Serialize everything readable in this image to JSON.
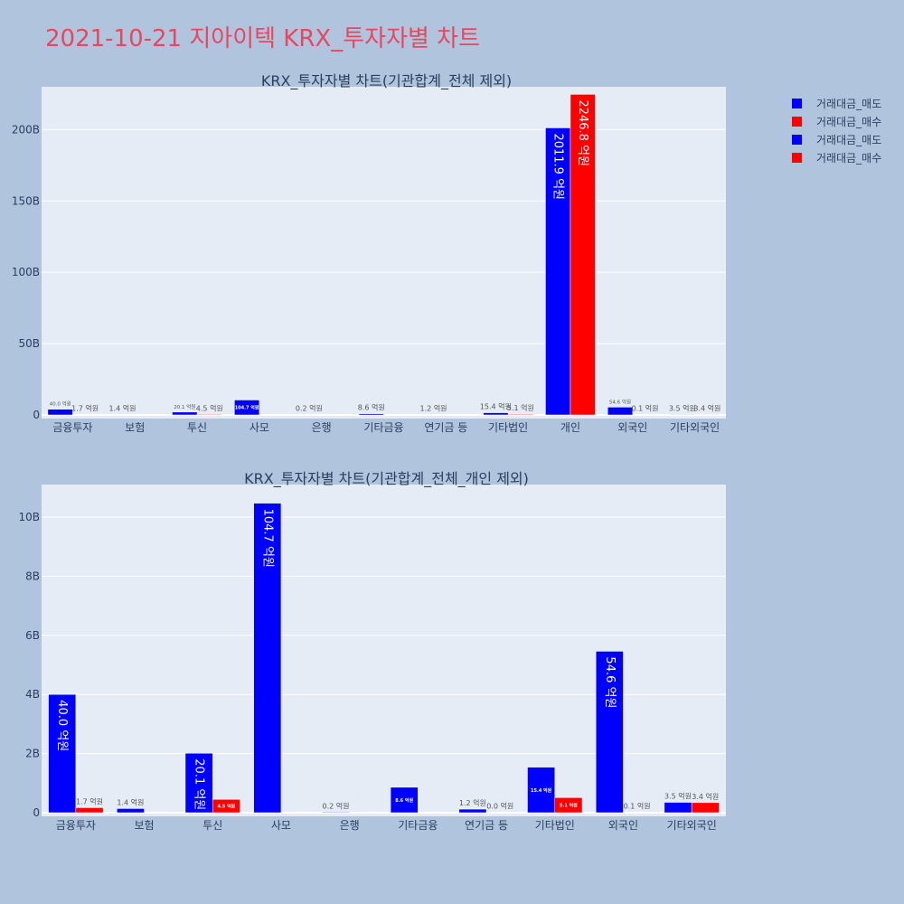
{
  "title": "2021-10-21 지아이텍 KRX_투자자별 차트",
  "colors": {
    "sell": "#0000ff",
    "buy": "#ff0000",
    "plot_bg": "#e5ecf6",
    "page_bg": "#b0c4de",
    "title": "#e8475f"
  },
  "legend": {
    "items": [
      {
        "label": "거래대금_매도",
        "color": "#0000ff"
      },
      {
        "label": "거래대금_매수",
        "color": "#ff0000"
      },
      {
        "label": "거래대금_매도",
        "color": "#0000ff"
      },
      {
        "label": "거래대금_매수",
        "color": "#ff0000"
      }
    ]
  },
  "chart_data": [
    {
      "type": "bar",
      "title": "KRX_투자자별 차트(기관합계_전체 제외)",
      "categories": [
        "금융투자",
        "보험",
        "투신",
        "사모",
        "은행",
        "기타금융",
        "연기금 등",
        "기타법인",
        "개인",
        "외국인",
        "기타외국인"
      ],
      "ylim": [
        0,
        230
      ],
      "yticks": [
        0,
        50,
        100,
        150,
        200
      ],
      "ytick_labels": [
        "0",
        "50B",
        "100B",
        "150B",
        "200B"
      ],
      "series": [
        {
          "name": "거래대금_매도",
          "color": "#0000ff",
          "values": [
            4.0,
            0.14,
            2.01,
            10.47,
            0.02,
            0.86,
            0.12,
            1.54,
            201.19,
            5.46,
            0.35
          ],
          "labels": [
            "40.0 억원",
            "1.4 억원",
            "20.1 억원",
            "104.7 억원",
            "0.2 억원",
            "8.6 억원",
            "1.2 억원",
            "15.4 억원",
            "2011.9 억원",
            "54.6 억원",
            "3.5 억원"
          ]
        },
        {
          "name": "거래대금_매수",
          "color": "#ff0000",
          "values": [
            0.17,
            null,
            0.45,
            null,
            null,
            null,
            null,
            0.51,
            224.68,
            0.01,
            0.34
          ],
          "labels": [
            "1.7 억원",
            null,
            "4.5 억원",
            null,
            null,
            null,
            null,
            "5.1 억원",
            "2246.8 억원",
            "0.1 억원",
            "3.4 억원"
          ]
        }
      ]
    },
    {
      "type": "bar",
      "title": "KRX_투자자별 차트(기관합계_전체_개인 제외)",
      "categories": [
        "금융투자",
        "보험",
        "투신",
        "사모",
        "은행",
        "기타금융",
        "연기금 등",
        "기타법인",
        "외국인",
        "기타외국인"
      ],
      "ylim": [
        0,
        11.1
      ],
      "yticks": [
        0,
        2,
        4,
        6,
        8,
        10
      ],
      "ytick_labels": [
        "0",
        "2B",
        "4B",
        "6B",
        "8B",
        "10B"
      ],
      "series": [
        {
          "name": "거래대금_매도",
          "color": "#0000ff",
          "values": [
            4.0,
            0.14,
            2.01,
            10.47,
            0.02,
            0.86,
            0.12,
            1.54,
            5.46,
            0.35
          ],
          "labels": [
            "40.0 억원",
            "1.4 억원",
            "20.1 억원",
            "104.7 억원",
            "0.2 억원",
            "8.6 억원",
            "1.2 억원",
            "15.4 억원",
            "54.6 억원",
            "3.5 억원"
          ]
        },
        {
          "name": "거래대금_매수",
          "color": "#ff0000",
          "values": [
            0.17,
            null,
            0.45,
            null,
            null,
            null,
            0.0,
            0.51,
            0.01,
            0.34
          ],
          "labels": [
            "1.7 억원",
            null,
            "4.5 억원",
            null,
            null,
            null,
            "0.0 억원",
            "5.1 억원",
            "0.1 억원",
            "3.4 억원"
          ]
        }
      ]
    }
  ]
}
